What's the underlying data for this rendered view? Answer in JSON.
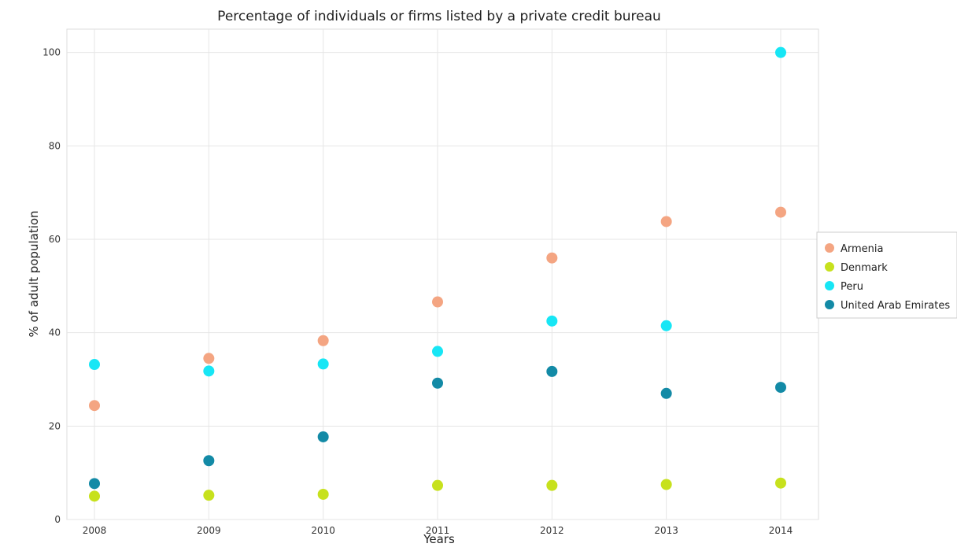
{
  "chart_data": {
    "type": "scatter",
    "title": "Percentage of individuals or firms listed by a private credit bureau",
    "xlabel": "Years",
    "ylabel": "% of adult population",
    "categories": [
      "2008",
      "2009",
      "2010",
      "2011",
      "2012",
      "2013",
      "2014"
    ],
    "ylim": [
      0,
      105
    ],
    "yticks": [
      0,
      20,
      40,
      60,
      80,
      100
    ],
    "grid": true,
    "legend_position": "right",
    "series": [
      {
        "name": "Armenia",
        "color": "#f4a582",
        "values": [
          24.4,
          34.5,
          38.3,
          46.6,
          56.0,
          63.8,
          65.8
        ]
      },
      {
        "name": "Denmark",
        "color": "#c7e11d",
        "values": [
          5.0,
          5.2,
          5.4,
          7.3,
          7.3,
          7.5,
          7.8
        ]
      },
      {
        "name": "Peru",
        "color": "#17e6f5",
        "values": [
          33.2,
          31.8,
          33.3,
          36.0,
          42.5,
          41.5,
          100.0
        ]
      },
      {
        "name": "United Arab Emirates",
        "color": "#138aa6",
        "values": [
          7.7,
          12.6,
          17.7,
          29.2,
          31.7,
          27.0,
          28.3
        ]
      }
    ]
  }
}
